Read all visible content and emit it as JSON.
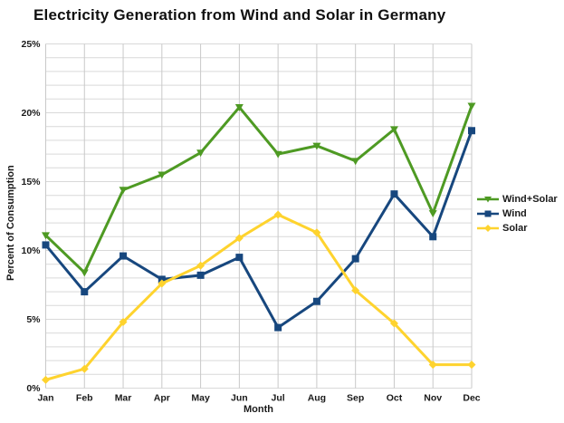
{
  "chart_data": {
    "type": "line",
    "title": "Electricity Generation from Wind and Solar in Germany",
    "xlabel": "Month",
    "ylabel": "Percent of Consumption",
    "categories": [
      "Jan",
      "Feb",
      "Mar",
      "Apr",
      "May",
      "Jun",
      "Jul",
      "Aug",
      "Sep",
      "Oct",
      "Nov",
      "Dec"
    ],
    "ylim": [
      0,
      25
    ],
    "ytick_step": 5,
    "minor_grid_step": 1,
    "ytick_labels": [
      "0%",
      "5%",
      "10%",
      "15%",
      "20%",
      "25%"
    ],
    "grid": "on",
    "legend_position": "right",
    "colors": {
      "grid_horizontal": "#d9d9d9",
      "grid_vertical": "#c9c9c9",
      "text": "#1a1a1a"
    },
    "series": [
      {
        "name": "Wind+Solar",
        "color": "#4e9a23",
        "marker": "triangle-down",
        "values": [
          11.1,
          8.4,
          14.4,
          15.5,
          17.1,
          20.4,
          17.0,
          17.6,
          16.5,
          18.8,
          12.7,
          20.5
        ]
      },
      {
        "name": "Wind",
        "color": "#17477e",
        "marker": "square",
        "values": [
          10.4,
          7.0,
          9.6,
          7.9,
          8.2,
          9.5,
          4.4,
          6.3,
          9.4,
          14.1,
          11.0,
          18.7
        ]
      },
      {
        "name": "Solar",
        "color": "#fed32e",
        "marker": "diamond",
        "values": [
          0.6,
          1.4,
          4.8,
          7.6,
          8.9,
          10.9,
          12.6,
          11.3,
          7.1,
          4.7,
          1.7,
          1.7
        ]
      }
    ]
  }
}
